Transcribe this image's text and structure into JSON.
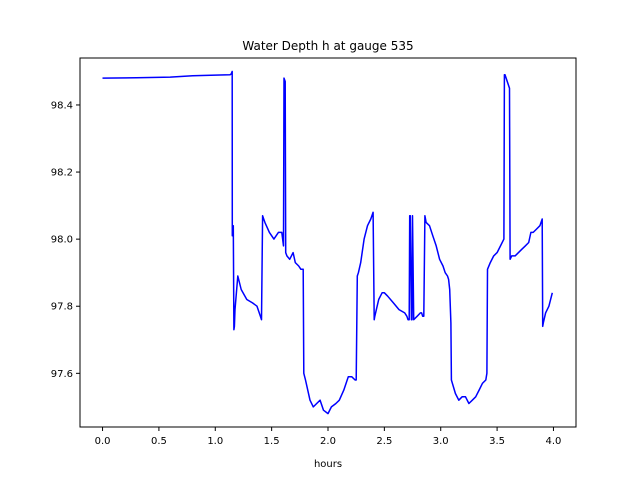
{
  "chart_data": {
    "type": "line",
    "title": "Water Depth h at gauge 535",
    "xlabel": "hours",
    "ylabel": "",
    "xlim": [
      -0.2,
      4.2
    ],
    "ylim": [
      97.44,
      98.54
    ],
    "xticks": [
      0.0,
      0.5,
      1.0,
      1.5,
      2.0,
      2.5,
      3.0,
      3.5,
      4.0
    ],
    "xtick_labels": [
      "0.0",
      "0.5",
      "1.0",
      "1.5",
      "2.0",
      "2.5",
      "3.0",
      "3.5",
      "4.0"
    ],
    "yticks": [
      97.6,
      97.8,
      98.0,
      98.2,
      98.4
    ],
    "ytick_labels": [
      "97.6",
      "97.8",
      "98.0",
      "98.2",
      "98.4"
    ],
    "grid": false,
    "series": [
      {
        "color": "#0000ff",
        "x": [
          0.0,
          0.3,
          0.6,
          0.8,
          1.0,
          1.13,
          1.14,
          1.15,
          1.151,
          1.16,
          1.165,
          1.17,
          1.175,
          1.2,
          1.23,
          1.28,
          1.33,
          1.37,
          1.4,
          1.41,
          1.42,
          1.43,
          1.44,
          1.48,
          1.52,
          1.56,
          1.59,
          1.605,
          1.61,
          1.62,
          1.625,
          1.635,
          1.66,
          1.69,
          1.71,
          1.74,
          1.76,
          1.78,
          1.785,
          1.8,
          1.84,
          1.87,
          1.9,
          1.93,
          1.96,
          2.0,
          2.03,
          2.07,
          2.1,
          2.14,
          2.18,
          2.21,
          2.24,
          2.25,
          2.26,
          2.27,
          2.29,
          2.32,
          2.35,
          2.38,
          2.4,
          2.41,
          2.415,
          2.45,
          2.48,
          2.5,
          2.53,
          2.58,
          2.63,
          2.68,
          2.7,
          2.71,
          2.72,
          2.725,
          2.73,
          2.74,
          2.745,
          2.75,
          2.76,
          2.79,
          2.82,
          2.83,
          2.84,
          2.85,
          2.86,
          2.865,
          2.87,
          2.9,
          2.93,
          2.96,
          2.99,
          3.02,
          3.04,
          3.06,
          3.07,
          3.08,
          3.09,
          3.095,
          3.13,
          3.16,
          3.19,
          3.22,
          3.25,
          3.28,
          3.31,
          3.34,
          3.37,
          3.4,
          3.41,
          3.415,
          3.44,
          3.47,
          3.5,
          3.53,
          3.56,
          3.565,
          3.57,
          3.61,
          3.615,
          3.63,
          3.66,
          3.69,
          3.72,
          3.75,
          3.78,
          3.8,
          3.82,
          3.85,
          3.88,
          3.9,
          3.905,
          3.91,
          3.93,
          3.96,
          3.99
        ],
        "y": [
          98.48,
          98.481,
          98.483,
          98.487,
          98.489,
          98.49,
          98.492,
          98.5,
          98.01,
          98.04,
          97.73,
          97.74,
          97.79,
          97.89,
          97.85,
          97.82,
          97.81,
          97.8,
          97.77,
          97.76,
          98.07,
          98.06,
          98.05,
          98.02,
          98.0,
          98.02,
          98.02,
          97.98,
          98.48,
          98.47,
          97.96,
          97.95,
          97.94,
          97.96,
          97.93,
          97.92,
          97.91,
          97.91,
          97.6,
          97.58,
          97.52,
          97.5,
          97.51,
          97.52,
          97.49,
          97.48,
          97.5,
          97.51,
          97.52,
          97.55,
          97.59,
          97.59,
          97.58,
          97.58,
          97.89,
          97.9,
          97.93,
          98.0,
          98.04,
          98.06,
          98.08,
          97.76,
          97.77,
          97.82,
          97.84,
          97.84,
          97.83,
          97.81,
          97.79,
          97.78,
          97.77,
          97.76,
          97.76,
          98.07,
          98.07,
          97.76,
          97.76,
          98.07,
          97.76,
          97.77,
          97.78,
          97.78,
          97.77,
          97.77,
          98.07,
          98.06,
          98.05,
          98.04,
          98.01,
          97.98,
          97.94,
          97.92,
          97.9,
          97.89,
          97.88,
          97.85,
          97.75,
          97.58,
          97.54,
          97.52,
          97.53,
          97.53,
          97.51,
          97.52,
          97.53,
          97.55,
          97.57,
          97.58,
          97.6,
          97.91,
          97.93,
          97.95,
          97.96,
          97.98,
          98.0,
          98.49,
          98.49,
          98.45,
          97.94,
          97.95,
          97.95,
          97.96,
          97.97,
          97.98,
          97.99,
          98.02,
          98.02,
          98.03,
          98.04,
          98.06,
          97.74,
          97.75,
          97.78,
          97.8,
          97.84
        ]
      }
    ]
  }
}
